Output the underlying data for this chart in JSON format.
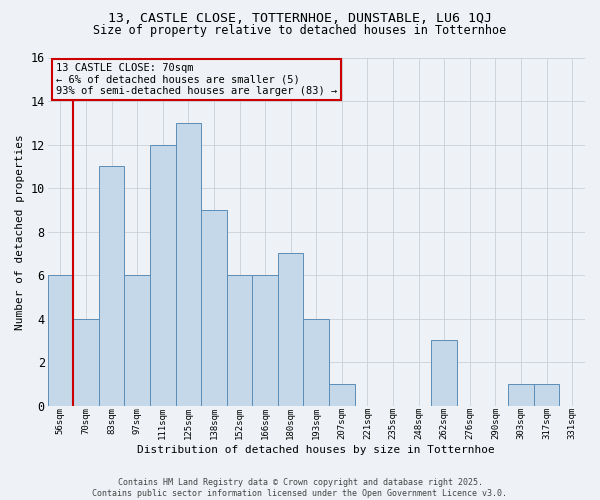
{
  "title": "13, CASTLE CLOSE, TOTTERNHOE, DUNSTABLE, LU6 1QJ",
  "subtitle": "Size of property relative to detached houses in Totternhoe",
  "xlabel": "Distribution of detached houses by size in Totternhoe",
  "ylabel": "Number of detached properties",
  "categories": [
    "56sqm",
    "70sqm",
    "83sqm",
    "97sqm",
    "111sqm",
    "125sqm",
    "138sqm",
    "152sqm",
    "166sqm",
    "180sqm",
    "193sqm",
    "207sqm",
    "221sqm",
    "235sqm",
    "248sqm",
    "262sqm",
    "276sqm",
    "290sqm",
    "303sqm",
    "317sqm",
    "331sqm"
  ],
  "values": [
    6,
    4,
    11,
    6,
    12,
    13,
    9,
    6,
    6,
    7,
    4,
    1,
    0,
    0,
    0,
    3,
    0,
    0,
    1,
    1,
    0
  ],
  "bar_color": "#c5d8ea",
  "bar_edge_color": "#5b8db8",
  "grid_color": "#c8d0d8",
  "background_color": "#eef2f6",
  "annotation_line1": "13 CASTLE CLOSE: 70sqm",
  "annotation_line2": "← 6% of detached houses are smaller (5)",
  "annotation_line3": "93% of semi-detached houses are larger (83) →",
  "annotation_box_color": "#cc0000",
  "vline_index": 1,
  "ylim": [
    0,
    16
  ],
  "yticks": [
    0,
    2,
    4,
    6,
    8,
    10,
    12,
    14,
    16
  ],
  "footer_line1": "Contains HM Land Registry data © Crown copyright and database right 2025.",
  "footer_line2": "Contains public sector information licensed under the Open Government Licence v3.0."
}
